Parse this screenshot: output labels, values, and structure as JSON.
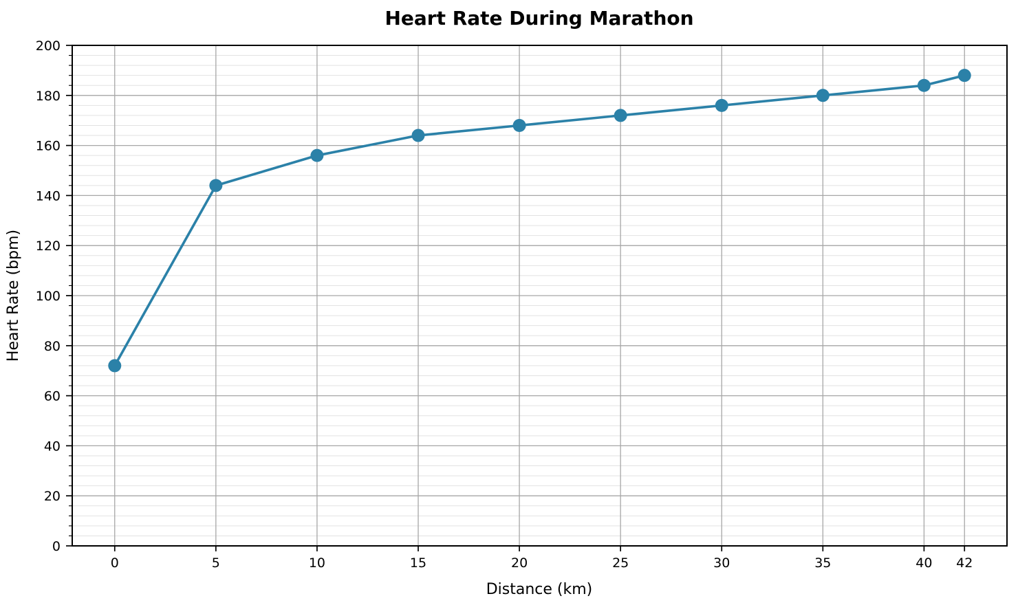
{
  "chart_data": {
    "type": "line",
    "title": "Heart Rate During Marathon",
    "xlabel": "Distance (km)",
    "ylabel": "Heart Rate (bpm)",
    "x": [
      0,
      5,
      10,
      15,
      20,
      25,
      30,
      35,
      40,
      42
    ],
    "y": [
      72,
      144,
      156,
      164,
      168,
      172,
      176,
      180,
      184,
      188
    ],
    "x_tick_labels": [
      "0",
      "5",
      "10",
      "15",
      "20",
      "25",
      "30",
      "35",
      "40",
      "42"
    ],
    "x_ticks": [
      0,
      5,
      10,
      15,
      20,
      25,
      30,
      35,
      40,
      42
    ],
    "y_tick_labels": [
      "0",
      "20",
      "40",
      "60",
      "80",
      "100",
      "120",
      "140",
      "160",
      "180",
      "200"
    ],
    "y_ticks": [
      0,
      20,
      40,
      60,
      80,
      100,
      120,
      140,
      160,
      180,
      200
    ],
    "xlim": [
      -2.1,
      44.1
    ],
    "ylim": [
      0,
      200
    ],
    "y_minor_step": 4,
    "grid": "major-xy-plus-minor-y",
    "legend": "none",
    "colors": {
      "line": "#2b81a8",
      "marker": "#2b81a8",
      "major_grid": "#a6a6a6",
      "minor_grid": "#e2e2e2",
      "spine": "#000000",
      "text": "#000000",
      "background": "#ffffff"
    }
  }
}
